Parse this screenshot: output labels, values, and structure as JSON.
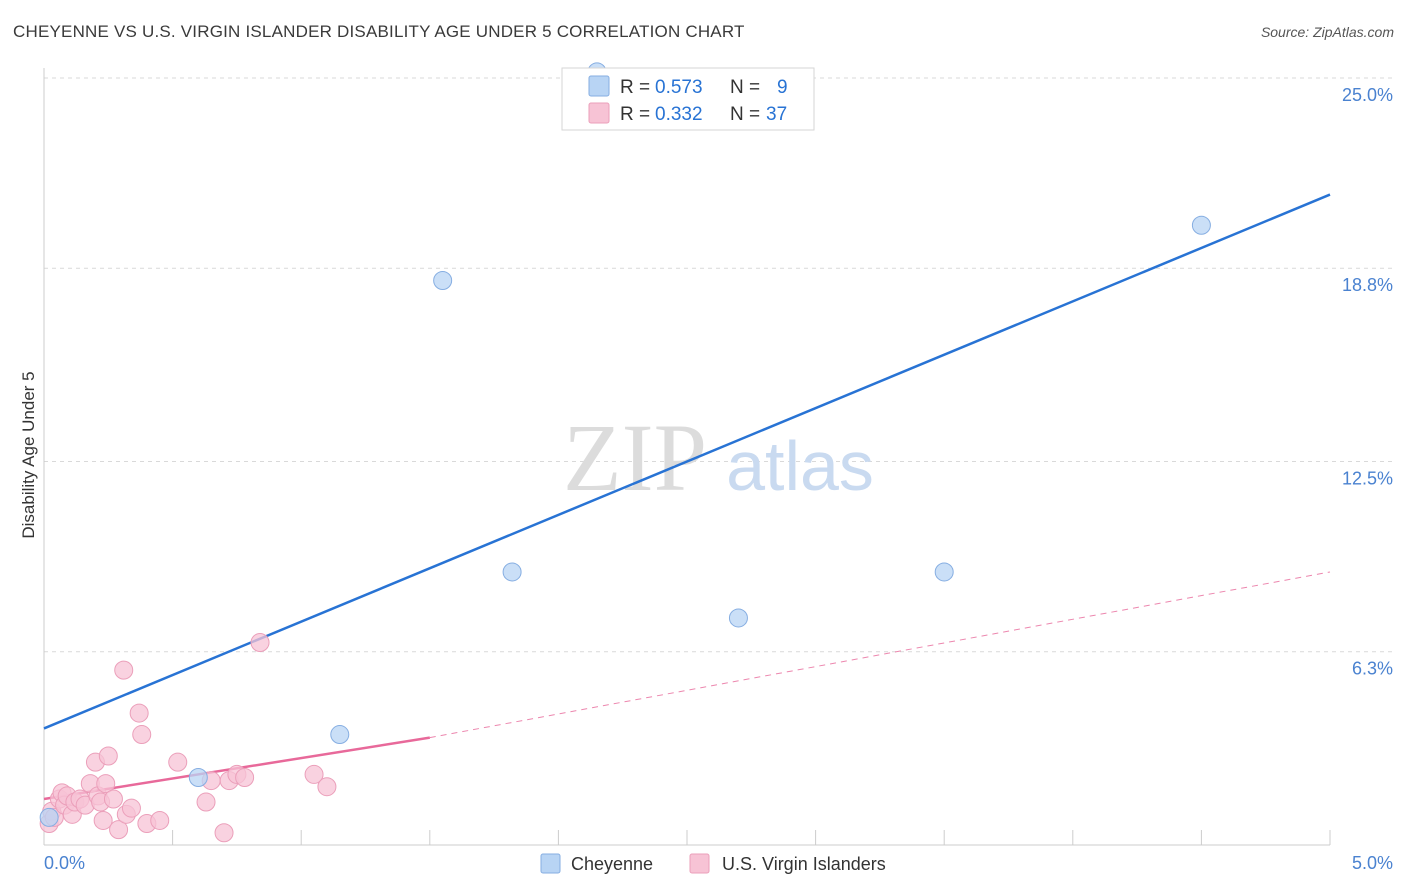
{
  "title": "CHEYENNE VS U.S. VIRGIN ISLANDER DISABILITY AGE UNDER 5 CORRELATION CHART",
  "source": "Source: ZipAtlas.com",
  "watermark": {
    "part1": "ZIP",
    "part2": "atlas"
  },
  "colors": {
    "blue": "#2873d4",
    "blue_fill": "#b8d4f4",
    "blue_stroke": "#86aee2",
    "pink": "#e8699a",
    "pink_fill": "#f7c3d5",
    "pink_stroke": "#eb9fba",
    "grid": "#d9d9d9",
    "tick_text": "#4a82d0"
  },
  "legend": {
    "rows": [
      {
        "series": "Cheyenne",
        "r_label": "R = ",
        "r_value": "0.573",
        "n_label": "N = ",
        "n_value": "9"
      },
      {
        "series": "U.S. Virgin Islanders",
        "r_label": "R = ",
        "r_value": "0.332",
        "n_label": "N = ",
        "n_value": "37"
      }
    ]
  },
  "chart_data": {
    "type": "scatter",
    "title": "CHEYENNE VS U.S. VIRGIN ISLANDER DISABILITY AGE UNDER 5 CORRELATION CHART",
    "xlabel": "",
    "ylabel": "Disability Age Under 5",
    "xlim": [
      0,
      5.0
    ],
    "ylim": [
      0,
      25.0
    ],
    "x_tick_labels": [
      "0.0%",
      "5.0%"
    ],
    "y_ticks": [
      6.3,
      12.5,
      18.8,
      25.0
    ],
    "y_tick_labels": [
      "6.3%",
      "12.5%",
      "18.8%",
      "25.0%"
    ],
    "grid": true,
    "legend_position": "bottom-center",
    "series": [
      {
        "name": "Cheyenne",
        "color": "blue",
        "points": [
          {
            "x": 0.02,
            "y": 0.9
          },
          {
            "x": 0.6,
            "y": 2.2
          },
          {
            "x": 1.15,
            "y": 3.6
          },
          {
            "x": 1.55,
            "y": 18.4
          },
          {
            "x": 1.82,
            "y": 8.9
          },
          {
            "x": 2.7,
            "y": 7.4
          },
          {
            "x": 3.5,
            "y": 8.9
          },
          {
            "x": 4.5,
            "y": 20.2
          },
          {
            "x": 2.15,
            "y": 25.2
          }
        ],
        "trend": {
          "x0": 0.0,
          "y0": 3.8,
          "x1": 5.0,
          "y1": 21.2,
          "dashed": false
        }
      },
      {
        "name": "U.S. Virgin Islanders",
        "color": "pink",
        "points": [
          {
            "x": 0.02,
            "y": 0.7
          },
          {
            "x": 0.03,
            "y": 1.1
          },
          {
            "x": 0.04,
            "y": 0.9
          },
          {
            "x": 0.06,
            "y": 1.5
          },
          {
            "x": 0.07,
            "y": 1.7
          },
          {
            "x": 0.08,
            "y": 1.3
          },
          {
            "x": 0.09,
            "y": 1.6
          },
          {
            "x": 0.11,
            "y": 1.0
          },
          {
            "x": 0.12,
            "y": 1.4
          },
          {
            "x": 0.14,
            "y": 1.5
          },
          {
            "x": 0.16,
            "y": 1.3
          },
          {
            "x": 0.18,
            "y": 2.0
          },
          {
            "x": 0.2,
            "y": 2.7
          },
          {
            "x": 0.21,
            "y": 1.6
          },
          {
            "x": 0.22,
            "y": 1.4
          },
          {
            "x": 0.23,
            "y": 0.8
          },
          {
            "x": 0.24,
            "y": 2.0
          },
          {
            "x": 0.25,
            "y": 2.9
          },
          {
            "x": 0.27,
            "y": 1.5
          },
          {
            "x": 0.29,
            "y": 0.5
          },
          {
            "x": 0.31,
            "y": 5.7
          },
          {
            "x": 0.32,
            "y": 1.0
          },
          {
            "x": 0.34,
            "y": 1.2
          },
          {
            "x": 0.37,
            "y": 4.3
          },
          {
            "x": 0.38,
            "y": 3.6
          },
          {
            "x": 0.4,
            "y": 0.7
          },
          {
            "x": 0.45,
            "y": 0.8
          },
          {
            "x": 0.52,
            "y": 2.7
          },
          {
            "x": 0.63,
            "y": 1.4
          },
          {
            "x": 0.65,
            "y": 2.1
          },
          {
            "x": 0.7,
            "y": 0.4
          },
          {
            "x": 0.72,
            "y": 2.1
          },
          {
            "x": 0.75,
            "y": 2.3
          },
          {
            "x": 0.78,
            "y": 2.2
          },
          {
            "x": 0.84,
            "y": 6.6
          },
          {
            "x": 1.05,
            "y": 2.3
          },
          {
            "x": 1.1,
            "y": 1.9
          }
        ],
        "trend": {
          "x0": 0.0,
          "y0": 1.5,
          "x1": 1.5,
          "y1": 3.5,
          "dashed": false
        },
        "trend_extension": {
          "x0": 1.5,
          "y0": 3.5,
          "x1": 5.0,
          "y1": 8.9,
          "dashed": true
        }
      }
    ]
  }
}
